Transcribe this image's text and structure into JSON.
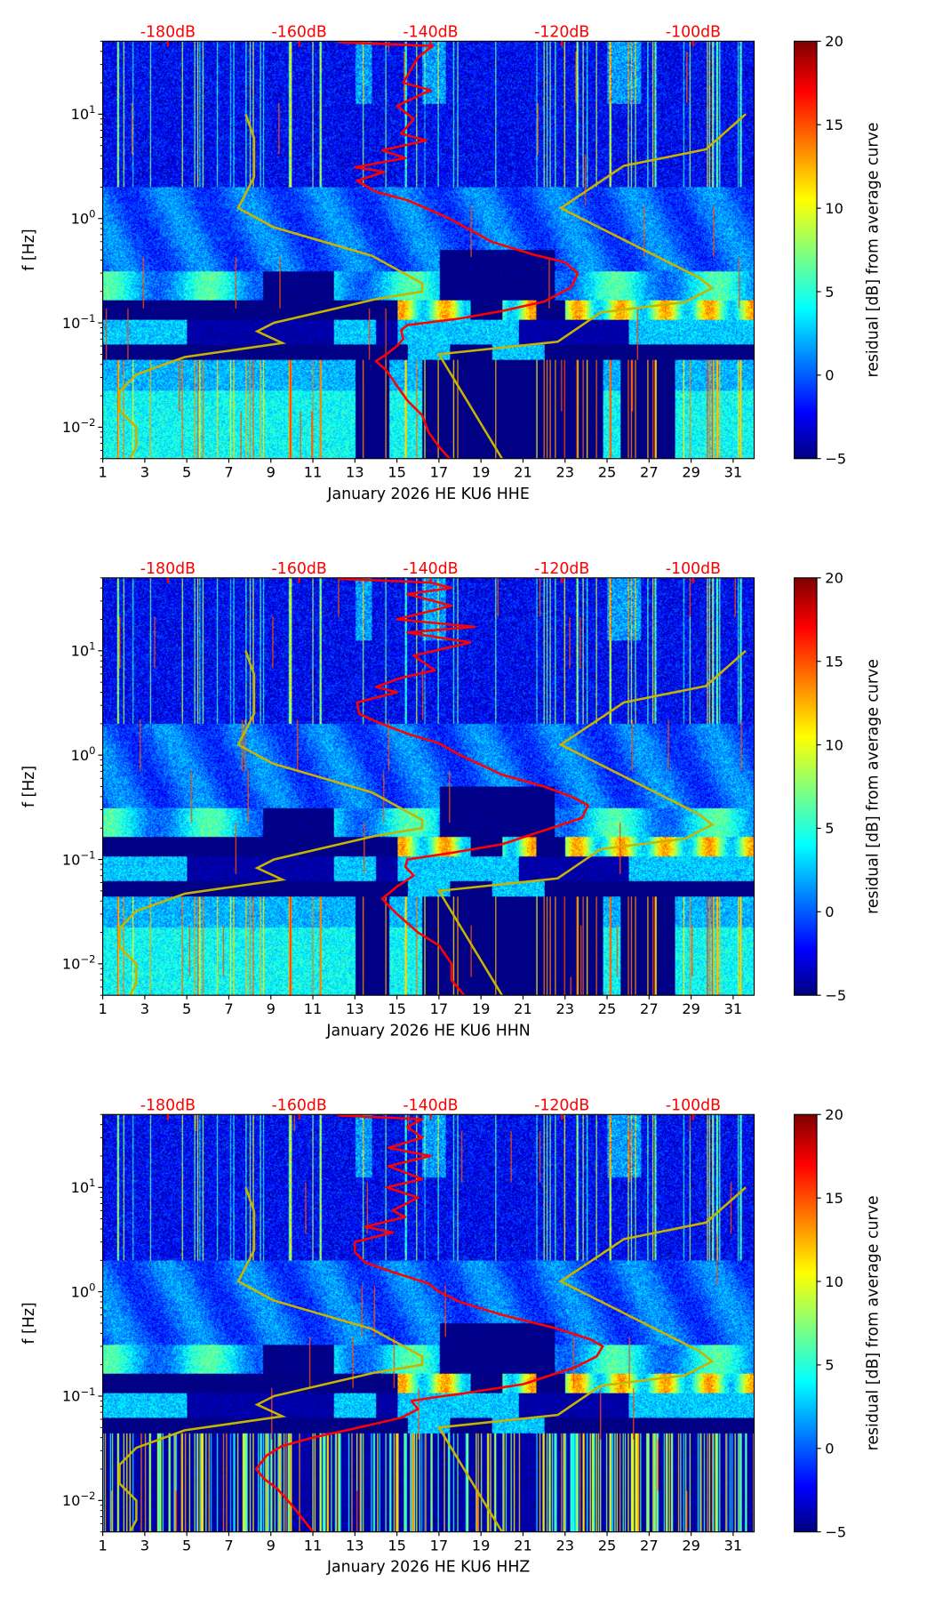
{
  "chart_data": [
    {
      "type": "heatmap",
      "xlabel": "January 2026 HE KU6  HHE",
      "ylabel": "f [Hz]",
      "x_range_days": [
        1,
        32
      ],
      "y_range_hz": [
        0.005,
        50
      ],
      "y_scale": "log",
      "x_ticks": [
        "1",
        "3",
        "5",
        "7",
        "9",
        "11",
        "13",
        "15",
        "17",
        "19",
        "21",
        "23",
        "25",
        "27",
        "29",
        "31"
      ],
      "y_ticks": [
        {
          "value": 0.01,
          "base": "10",
          "exp": "−2"
        },
        {
          "value": 0.1,
          "base": "10",
          "exp": "−1"
        },
        {
          "value": 1,
          "base": "10",
          "exp": "0"
        },
        {
          "value": 10,
          "base": "10",
          "exp": "1"
        }
      ],
      "top_axis": {
        "ticks_day": [
          4.1,
          10.35,
          16.6,
          22.85,
          29.1
        ],
        "labels": [
          "-180dB",
          "-160dB",
          "-140dB",
          "-120dB",
          "-100dB"
        ],
        "color": "#ff0000"
      },
      "colorbar": {
        "label": "residual [dB] from average curve",
        "range": [
          -5,
          20
        ],
        "ticks": [
          "−5",
          "0",
          "5",
          "10",
          "15",
          "20"
        ],
        "colormap": "jet"
      },
      "reference_curve": {
        "color": "#c8b400",
        "points": [
          [
            7.8,
            10
          ],
          [
            8.2,
            5.9
          ],
          [
            8.2,
            2.5
          ],
          [
            7.45,
            1.26
          ],
          [
            9.1,
            0.83
          ],
          [
            13.8,
            0.44
          ],
          [
            16.2,
            0.24
          ],
          [
            16.2,
            0.2
          ],
          [
            13.95,
            0.168
          ],
          [
            9.15,
            0.1
          ],
          [
            8.35,
            0.083
          ],
          [
            9.55,
            0.064
          ],
          [
            4.9,
            0.047
          ],
          [
            2.6,
            0.032
          ],
          [
            1.8,
            0.022
          ],
          [
            1.8,
            0.0145
          ],
          [
            2.6,
            0.01
          ],
          [
            2.6,
            0.0065
          ],
          [
            2.3,
            0.005
          ]
        ],
        "branch": [
          [
            20,
            0.005
          ],
          [
            17.0,
            0.05
          ],
          [
            22.65,
            0.066
          ],
          [
            24.7,
            0.126
          ],
          [
            28.7,
            0.158
          ],
          [
            30.0,
            0.215
          ],
          [
            29.4,
            0.27
          ],
          [
            22.8,
            1.26
          ],
          [
            25.8,
            3.2
          ],
          [
            29.7,
            4.6
          ],
          [
            31.6,
            10
          ]
        ]
      },
      "psd_curve": {
        "color": "#ff0000",
        "points": [
          [
            12.2,
            49
          ],
          [
            16.7,
            45
          ],
          [
            16.0,
            35
          ],
          [
            15.3,
            20
          ],
          [
            16.6,
            17
          ],
          [
            15.0,
            12
          ],
          [
            15.8,
            9
          ],
          [
            15.2,
            6.5
          ],
          [
            16.4,
            5.6
          ],
          [
            14.3,
            4.5
          ],
          [
            15.4,
            3.8
          ],
          [
            13.0,
            3.1
          ],
          [
            14.4,
            2.8
          ],
          [
            13.1,
            2.3
          ],
          [
            14.0,
            1.8
          ],
          [
            15.5,
            1.5
          ],
          [
            17.5,
            1.0
          ],
          [
            19.5,
            0.6
          ],
          [
            21.5,
            0.45
          ],
          [
            23.0,
            0.38
          ],
          [
            23.6,
            0.3
          ],
          [
            23.3,
            0.22
          ],
          [
            22.0,
            0.16
          ],
          [
            20.0,
            0.13
          ],
          [
            18.0,
            0.11
          ],
          [
            15.5,
            0.095
          ],
          [
            15.2,
            0.085
          ],
          [
            15.3,
            0.07
          ],
          [
            15.0,
            0.06
          ],
          [
            14.5,
            0.05
          ],
          [
            14.0,
            0.043
          ],
          [
            14.5,
            0.035
          ],
          [
            15.0,
            0.025
          ],
          [
            15.5,
            0.018
          ],
          [
            16.2,
            0.013
          ],
          [
            16.5,
            0.009
          ],
          [
            17.0,
            0.0065
          ],
          [
            17.5,
            0.005
          ]
        ]
      }
    },
    {
      "type": "heatmap",
      "xlabel": "January 2026 HE KU6  HHN",
      "ylabel": "f [Hz]",
      "x_range_days": [
        1,
        32
      ],
      "y_range_hz": [
        0.005,
        50
      ],
      "y_scale": "log",
      "x_ticks": [
        "1",
        "3",
        "5",
        "7",
        "9",
        "11",
        "13",
        "15",
        "17",
        "19",
        "21",
        "23",
        "25",
        "27",
        "29",
        "31"
      ],
      "y_ticks": [
        {
          "value": 0.01,
          "base": "10",
          "exp": "−2"
        },
        {
          "value": 0.1,
          "base": "10",
          "exp": "−1"
        },
        {
          "value": 1,
          "base": "10",
          "exp": "0"
        },
        {
          "value": 10,
          "base": "10",
          "exp": "1"
        }
      ],
      "top_axis": {
        "ticks_day": [
          4.1,
          10.35,
          16.6,
          22.85,
          29.1
        ],
        "labels": [
          "-180dB",
          "-160dB",
          "-140dB",
          "-120dB",
          "-100dB"
        ],
        "color": "#ff0000"
      },
      "colorbar": {
        "label": "residual [dB] from average curve",
        "range": [
          -5,
          20
        ],
        "ticks": [
          "−5",
          "0",
          "5",
          "10",
          "15",
          "20"
        ],
        "colormap": "jet"
      },
      "reference_curve": {
        "color": "#c8b400",
        "points": [
          [
            7.8,
            10
          ],
          [
            8.2,
            5.9
          ],
          [
            8.2,
            2.5
          ],
          [
            7.45,
            1.26
          ],
          [
            9.1,
            0.83
          ],
          [
            13.8,
            0.44
          ],
          [
            16.2,
            0.24
          ],
          [
            16.2,
            0.2
          ],
          [
            13.95,
            0.168
          ],
          [
            9.15,
            0.1
          ],
          [
            8.35,
            0.083
          ],
          [
            9.55,
            0.064
          ],
          [
            4.9,
            0.047
          ],
          [
            2.6,
            0.032
          ],
          [
            1.8,
            0.022
          ],
          [
            1.8,
            0.0145
          ],
          [
            2.6,
            0.01
          ],
          [
            2.6,
            0.0065
          ],
          [
            2.3,
            0.005
          ]
        ],
        "branch": [
          [
            20,
            0.005
          ],
          [
            17.0,
            0.05
          ],
          [
            22.65,
            0.066
          ],
          [
            24.7,
            0.126
          ],
          [
            28.7,
            0.158
          ],
          [
            30.0,
            0.215
          ],
          [
            29.4,
            0.27
          ],
          [
            22.8,
            1.26
          ],
          [
            25.8,
            3.2
          ],
          [
            29.7,
            4.6
          ],
          [
            31.6,
            10
          ]
        ]
      },
      "psd_curve": {
        "color": "#ff0000",
        "points": [
          [
            12.2,
            49
          ],
          [
            16.6,
            45
          ],
          [
            17.6,
            40
          ],
          [
            15.5,
            35
          ],
          [
            17.6,
            27
          ],
          [
            15.0,
            20
          ],
          [
            18.7,
            17
          ],
          [
            15.5,
            15
          ],
          [
            18.5,
            12
          ],
          [
            15.8,
            9
          ],
          [
            16.8,
            6.5
          ],
          [
            15.2,
            5.5
          ],
          [
            14.0,
            4.5
          ],
          [
            15.0,
            4.0
          ],
          [
            13.1,
            3.2
          ],
          [
            13.2,
            2.5
          ],
          [
            14.0,
            2.1
          ],
          [
            15.5,
            1.6
          ],
          [
            17.0,
            1.3
          ],
          [
            18.0,
            1.0
          ],
          [
            20.0,
            0.65
          ],
          [
            22.0,
            0.5
          ],
          [
            23.3,
            0.4
          ],
          [
            24.1,
            0.33
          ],
          [
            23.8,
            0.25
          ],
          [
            22.0,
            0.19
          ],
          [
            20.0,
            0.14
          ],
          [
            17.5,
            0.115
          ],
          [
            15.5,
            0.1
          ],
          [
            15.4,
            0.085
          ],
          [
            15.8,
            0.07
          ],
          [
            15.0,
            0.055
          ],
          [
            14.3,
            0.042
          ],
          [
            15.0,
            0.03
          ],
          [
            16.0,
            0.02
          ],
          [
            17.0,
            0.015
          ],
          [
            17.6,
            0.01
          ],
          [
            17.6,
            0.007
          ],
          [
            18.2,
            0.005
          ]
        ]
      }
    },
    {
      "type": "heatmap",
      "xlabel": "January 2026 HE KU6  HHZ",
      "ylabel": "f [Hz]",
      "x_range_days": [
        1,
        32
      ],
      "y_range_hz": [
        0.005,
        50
      ],
      "y_scale": "log",
      "x_ticks": [
        "1",
        "3",
        "5",
        "7",
        "9",
        "11",
        "13",
        "15",
        "17",
        "19",
        "21",
        "23",
        "25",
        "27",
        "29",
        "31"
      ],
      "y_ticks": [
        {
          "value": 0.01,
          "base": "10",
          "exp": "−2"
        },
        {
          "value": 0.1,
          "base": "10",
          "exp": "−1"
        },
        {
          "value": 1,
          "base": "10",
          "exp": "0"
        },
        {
          "value": 10,
          "base": "10",
          "exp": "1"
        }
      ],
      "top_axis": {
        "ticks_day": [
          4.1,
          10.35,
          16.6,
          22.85,
          29.1
        ],
        "labels": [
          "-180dB",
          "-160dB",
          "-140dB",
          "-120dB",
          "-100dB"
        ],
        "color": "#ff0000"
      },
      "colorbar": {
        "label": "residual [dB] from average curve",
        "range": [
          -5,
          20
        ],
        "ticks": [
          "−5",
          "0",
          "5",
          "10",
          "15",
          "20"
        ],
        "colormap": "jet"
      },
      "reference_curve": {
        "color": "#c8b400",
        "points": [
          [
            7.8,
            10
          ],
          [
            8.2,
            5.9
          ],
          [
            8.2,
            2.5
          ],
          [
            7.45,
            1.26
          ],
          [
            9.1,
            0.83
          ],
          [
            13.8,
            0.44
          ],
          [
            16.2,
            0.24
          ],
          [
            16.2,
            0.2
          ],
          [
            13.95,
            0.168
          ],
          [
            9.15,
            0.1
          ],
          [
            8.35,
            0.083
          ],
          [
            9.55,
            0.064
          ],
          [
            4.9,
            0.047
          ],
          [
            2.6,
            0.032
          ],
          [
            1.8,
            0.022
          ],
          [
            1.8,
            0.0145
          ],
          [
            2.6,
            0.01
          ],
          [
            2.6,
            0.0065
          ],
          [
            2.3,
            0.005
          ]
        ],
        "branch": [
          [
            20,
            0.005
          ],
          [
            17.0,
            0.05
          ],
          [
            22.65,
            0.066
          ],
          [
            24.7,
            0.126
          ],
          [
            28.7,
            0.158
          ],
          [
            30.0,
            0.215
          ],
          [
            29.4,
            0.27
          ],
          [
            22.8,
            1.26
          ],
          [
            25.8,
            3.2
          ],
          [
            29.7,
            4.6
          ],
          [
            31.6,
            10
          ]
        ]
      },
      "psd_curve": {
        "color": "#ff0000",
        "points": [
          [
            12.2,
            49
          ],
          [
            16.2,
            45
          ],
          [
            15.5,
            38
          ],
          [
            16.2,
            30
          ],
          [
            14.6,
            24
          ],
          [
            16.6,
            20
          ],
          [
            14.6,
            16
          ],
          [
            16.2,
            12
          ],
          [
            14.5,
            10
          ],
          [
            16.0,
            8
          ],
          [
            14.8,
            6
          ],
          [
            15.4,
            5.2
          ],
          [
            13.5,
            4.2
          ],
          [
            14.8,
            3.7
          ],
          [
            13.0,
            3.0
          ],
          [
            13.0,
            2.4
          ],
          [
            13.5,
            1.9
          ],
          [
            15.0,
            1.5
          ],
          [
            16.5,
            1.2
          ],
          [
            17.0,
            1.0
          ],
          [
            18.0,
            0.8
          ],
          [
            20.0,
            0.6
          ],
          [
            22.5,
            0.45
          ],
          [
            24.2,
            0.35
          ],
          [
            24.8,
            0.3
          ],
          [
            24.5,
            0.24
          ],
          [
            23.5,
            0.19
          ],
          [
            21.0,
            0.13
          ],
          [
            18.0,
            0.105
          ],
          [
            16.4,
            0.095
          ],
          [
            15.7,
            0.09
          ],
          [
            16.0,
            0.075
          ],
          [
            15.2,
            0.062
          ],
          [
            13.2,
            0.05
          ],
          [
            11.0,
            0.04
          ],
          [
            9.5,
            0.033
          ],
          [
            8.8,
            0.027
          ],
          [
            8.3,
            0.02
          ],
          [
            8.7,
            0.016
          ],
          [
            9.3,
            0.013
          ],
          [
            10.0,
            0.009
          ],
          [
            10.7,
            0.006
          ],
          [
            11.0,
            0.005
          ]
        ]
      }
    }
  ]
}
